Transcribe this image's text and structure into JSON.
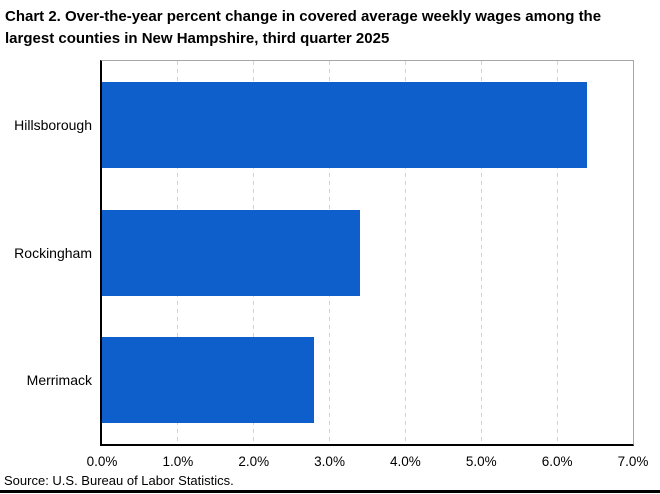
{
  "title_lines": [
    "Chart 2. Over-the-year percent change in covered average weekly wages among the",
    "largest counties in New Hampshire, third quarter 2025"
  ],
  "source": "Source: U.S. Bureau of Labor Statistics.",
  "colors": {
    "bar": "#0E5FCC",
    "gridline": "#d2d2d2",
    "plot_border": "#a6a6a6",
    "axis": "#000000"
  },
  "chart_data": {
    "type": "bar",
    "orientation": "horizontal",
    "title": "Chart 2. Over-the-year percent change in covered average weekly wages among the largest counties in New Hampshire, third quarter 2025",
    "categories": [
      "Hillsborough",
      "Rockingham",
      "Merrimack"
    ],
    "values": [
      6.4,
      3.4,
      2.8
    ],
    "unit": "%",
    "xlabel": "",
    "ylabel": "",
    "xlim": [
      0,
      7
    ],
    "x_ticks": [
      "0.0%",
      "1.0%",
      "2.0%",
      "3.0%",
      "4.0%",
      "5.0%",
      "6.0%",
      "7.0%"
    ],
    "grid": "vertical-dashed",
    "legend": "none",
    "bar_color": "#0E5FCC"
  }
}
